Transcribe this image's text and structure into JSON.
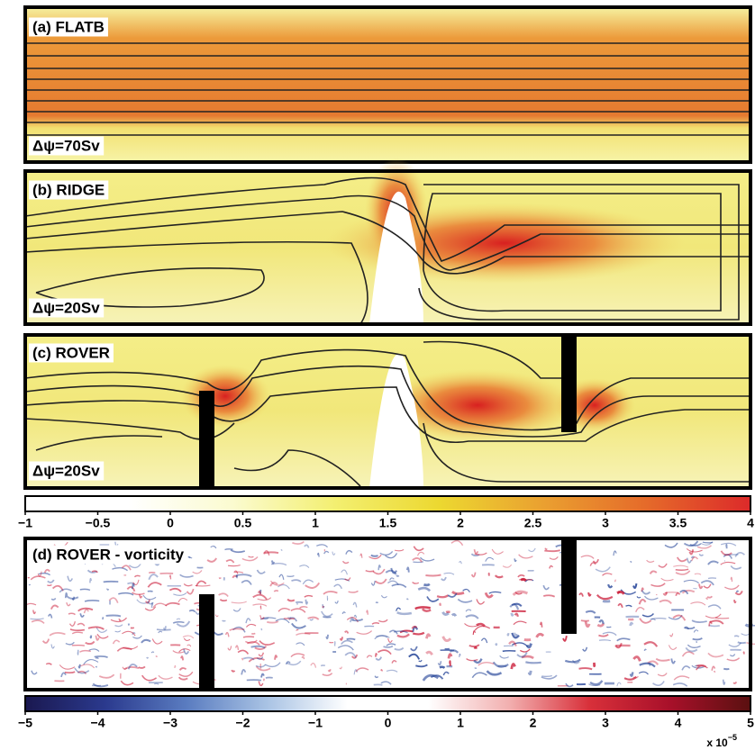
{
  "panels": [
    {
      "label": "(a) FLATB",
      "contour_interval": "Δψ=70Sv"
    },
    {
      "label": "(b) RIDGE",
      "contour_interval": "Δψ=20Sv"
    },
    {
      "label": "(c) ROVER",
      "contour_interval": "Δψ=20Sv"
    },
    {
      "label": "(d) ROVER - vorticity"
    }
  ],
  "colorbars": [
    {
      "lim": [
        -1,
        4
      ],
      "ticks": [
        {
          "value": -1,
          "label": "−1"
        },
        {
          "value": -0.5,
          "label": "−0.5"
        },
        0,
        0.5,
        1,
        1.5,
        2,
        2.5,
        3,
        3.5,
        4
      ],
      "colors": [
        "#ffffff",
        "#ffffff",
        "#fbfbd0",
        "#f3ef70",
        "#ecd830",
        "#eaa030",
        "#e56a2a",
        "#dc2a2a"
      ]
    },
    {
      "lim": [
        -5,
        5
      ],
      "ticks": [
        {
          "value": -5,
          "label": "−5"
        },
        {
          "value": -4,
          "label": "−4"
        },
        {
          "value": -3,
          "label": "−3"
        },
        {
          "value": -2,
          "label": "−2"
        },
        {
          "value": -1,
          "label": "−1"
        },
        0,
        1,
        2,
        3,
        4,
        5
      ],
      "multiplier": "x 10",
      "exponent": "−5",
      "colors": [
        "#1a1850",
        "#2b3a8e",
        "#5a7cc0",
        "#a9c3e4",
        "#ffffff",
        "#ffffff",
        "#f2b0b0",
        "#d8303a",
        "#a8102a",
        "#5a1010"
      ]
    }
  ]
}
